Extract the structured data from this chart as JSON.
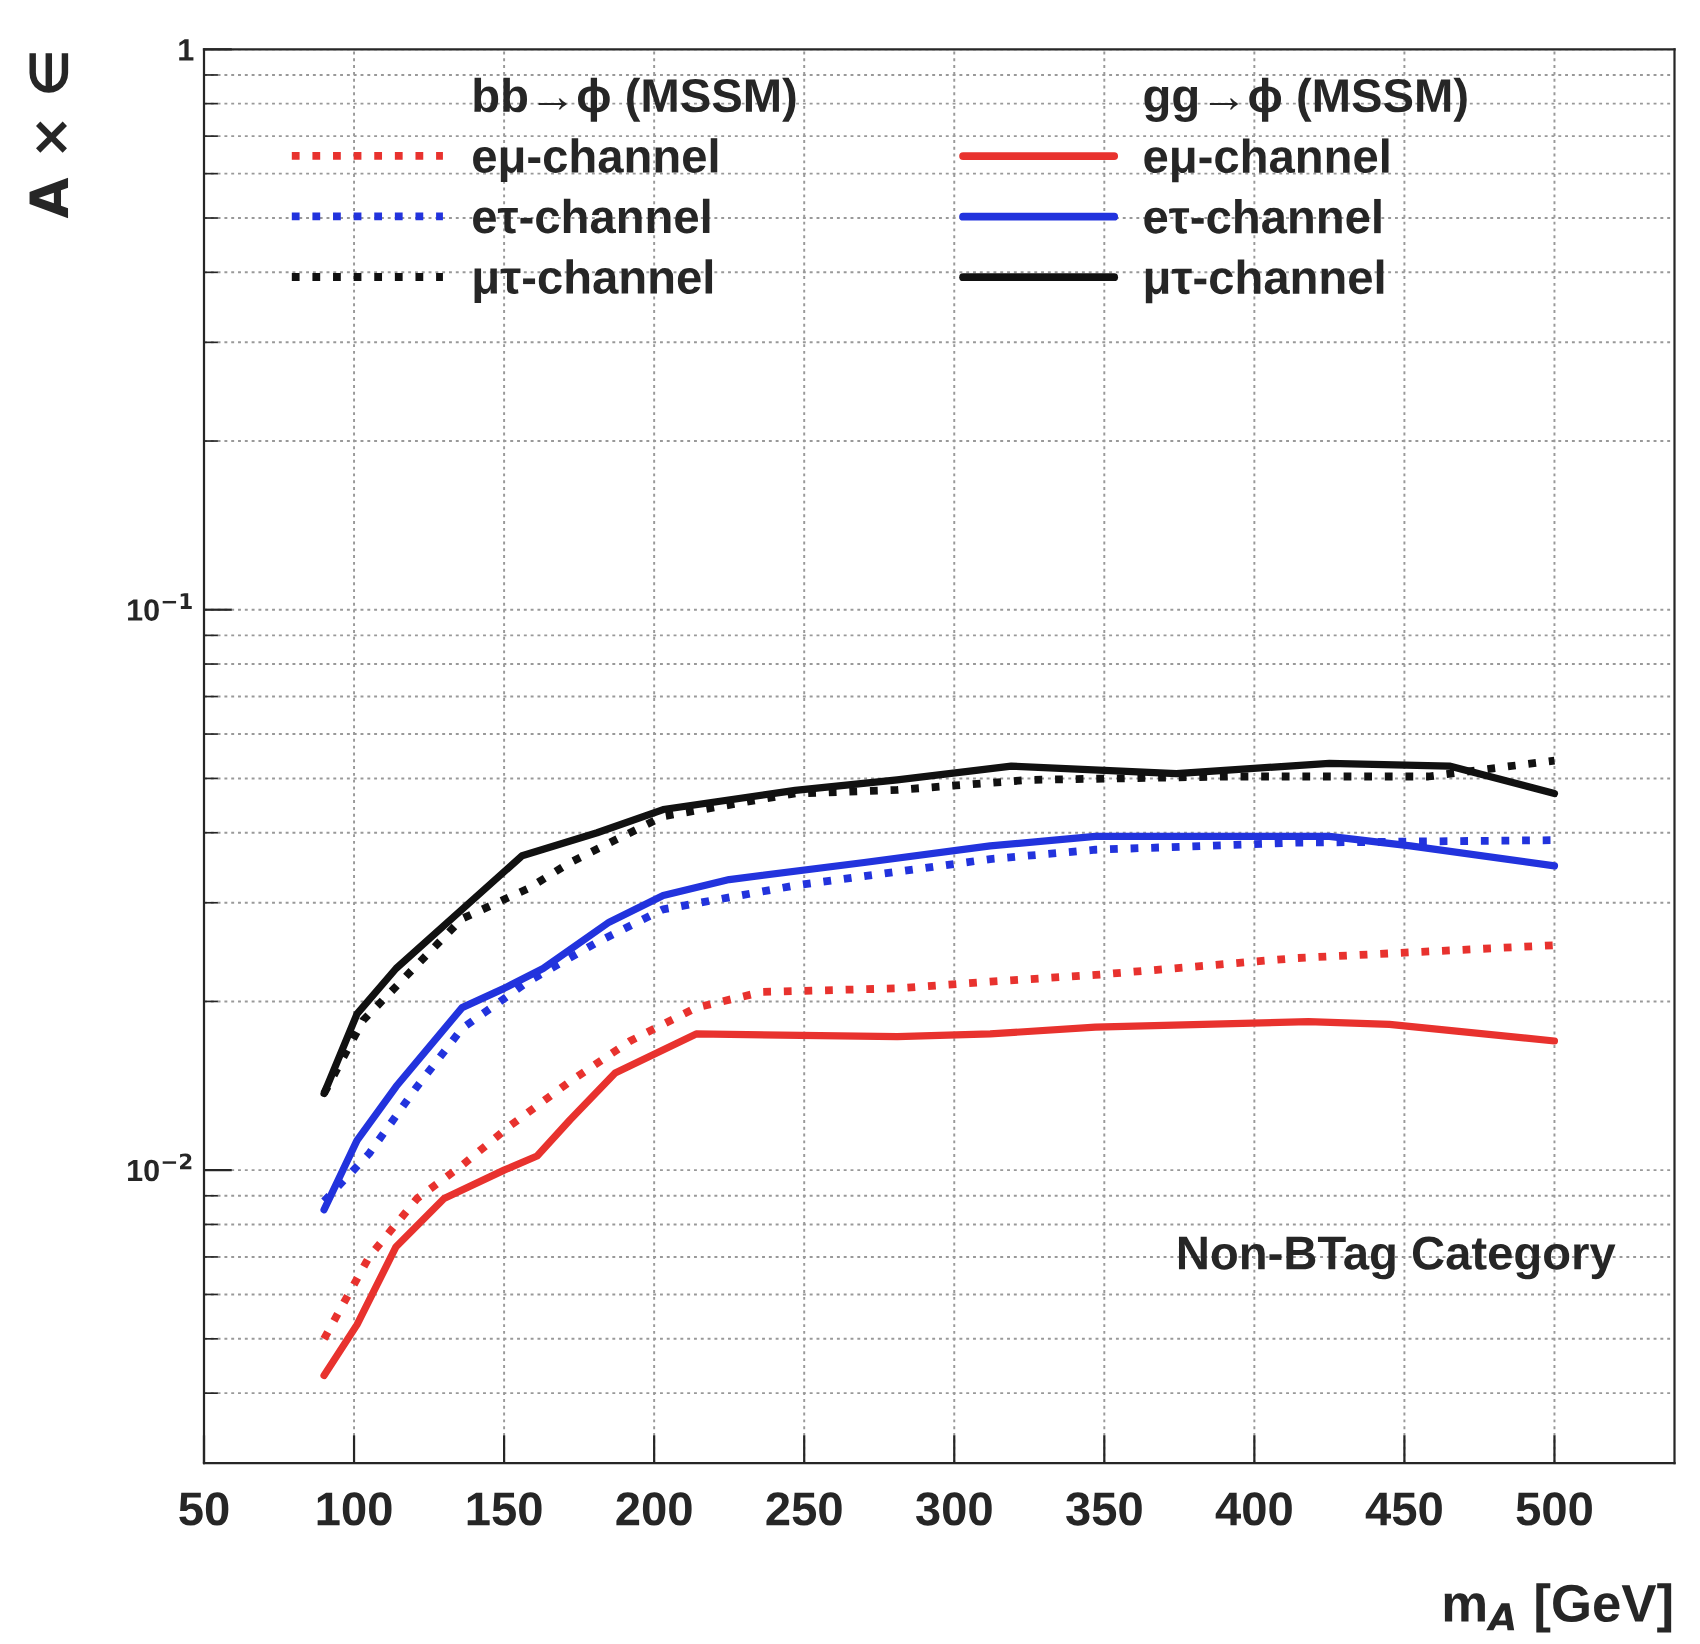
{
  "chart_data": {
    "type": "line",
    "xlabel": "m$_{A}$ [GeV]",
    "ylabel": "A × ∈",
    "xlim": [
      50,
      540
    ],
    "xticks": [
      50,
      100,
      150,
      200,
      250,
      300,
      350,
      400,
      450,
      500
    ],
    "ylim": [
      0.003,
      1
    ],
    "yticks": [
      {
        "value": 0.01,
        "label": "10$^{−2}$"
      },
      {
        "value": 0.1,
        "label": "10$^{−1}$"
      },
      1
    ],
    "log": "y",
    "grid": true,
    "legend": "top",
    "annotations": [
      "bb→ϕ (MSSM)",
      "gg→ϕ (MSSM)",
      "Non-BTag Category"
    ],
    "series": [
      {
        "name": "eμ-channel",
        "color": "#e8322e",
        "line_style": "dotted",
        "x": [
          90,
          105,
          121,
          136,
          152,
          172,
          192,
          214,
          236,
          281,
          312,
          347,
          414,
          500
        ],
        "values": [
          0.005,
          0.007,
          0.0089,
          0.0102,
          0.012,
          0.0144,
          0.017,
          0.0195,
          0.0208,
          0.0211,
          0.0217,
          0.0223,
          0.0239,
          0.0252
        ]
      },
      {
        "name": "eτ-channel",
        "color": "#2233dd",
        "line_style": "dotted",
        "x": [
          90,
          105,
          121,
          136,
          158,
          181,
          203,
          247,
          312,
          347,
          414,
          500
        ],
        "values": [
          0.0088,
          0.0107,
          0.0141,
          0.0179,
          0.0217,
          0.0255,
          0.0292,
          0.0322,
          0.0359,
          0.0373,
          0.0384,
          0.0388
        ]
      },
      {
        "name": "μτ-channel",
        "color": "#111111",
        "line_style": "dotted",
        "x": [
          90,
          103,
          136,
          158,
          172,
          203,
          247,
          281,
          325,
          392,
          458,
          500
        ],
        "values": [
          0.0137,
          0.0185,
          0.0281,
          0.0318,
          0.0354,
          0.0428,
          0.047,
          0.0477,
          0.0497,
          0.0504,
          0.0504,
          0.0538
        ]
      },
      {
        "name": "eμ-channel",
        "color": "#e8322e",
        "line_style": "solid",
        "x": [
          90,
          101,
          114,
          130,
          150,
          161,
          172,
          187,
          214,
          281,
          312,
          347,
          418,
          445,
          500
        ],
        "values": [
          0.0043,
          0.0053,
          0.0073,
          0.0089,
          0.01,
          0.0106,
          0.0123,
          0.0149,
          0.0175,
          0.0173,
          0.0175,
          0.018,
          0.0184,
          0.0182,
          0.017
        ]
      },
      {
        "name": "eτ-channel",
        "color": "#2233dd",
        "line_style": "solid",
        "x": [
          90,
          101,
          114,
          136,
          150,
          163,
          185,
          203,
          225,
          270,
          312,
          347,
          425,
          452,
          500
        ],
        "values": [
          0.0085,
          0.0113,
          0.0141,
          0.0195,
          0.0211,
          0.0229,
          0.0277,
          0.0309,
          0.033,
          0.0354,
          0.0379,
          0.0394,
          0.0394,
          0.0379,
          0.0349
        ]
      },
      {
        "name": "μτ-channel",
        "color": "#111111",
        "line_style": "solid",
        "x": [
          90,
          101,
          114,
          136,
          156,
          181,
          203,
          247,
          281,
          319,
          374,
          425,
          465,
          500
        ],
        "values": [
          0.0137,
          0.019,
          0.0229,
          0.0292,
          0.0364,
          0.04,
          0.044,
          0.0476,
          0.0497,
          0.0526,
          0.051,
          0.0532,
          0.0526,
          0.047
        ]
      }
    ]
  }
}
